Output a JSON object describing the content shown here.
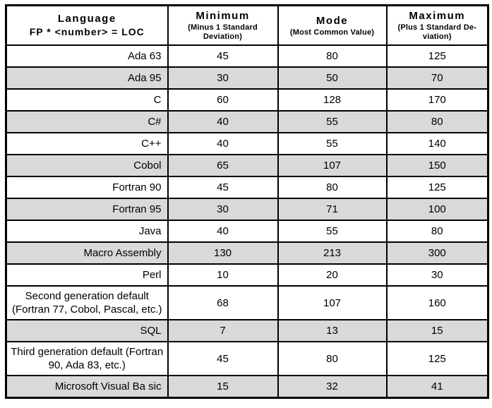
{
  "header": {
    "language": {
      "line1": "Language",
      "line2": "FP * <number> = LOC"
    },
    "minimum": {
      "title": "Minimum",
      "subtitle": "(Minus 1 Standard Deviation)"
    },
    "mode": {
      "title": "Mode",
      "subtitle": "(Most Common Value)"
    },
    "maximum": {
      "title": "Maximum",
      "subtitle": "(Plus 1 Standard De-viation)"
    }
  },
  "colors": {
    "shaded_row": "#d9d9d9",
    "border": "#000000"
  },
  "rows": [
    {
      "language": "Ada 63",
      "min": "45",
      "mode": "80",
      "max": "125",
      "shaded": false,
      "align": "right"
    },
    {
      "language": "Ada 95",
      "min": "30",
      "mode": "50",
      "max": "70",
      "shaded": true,
      "align": "right"
    },
    {
      "language": "C",
      "min": "60",
      "mode": "128",
      "max": "170",
      "shaded": false,
      "align": "right"
    },
    {
      "language": "C#",
      "min": "40",
      "mode": "55",
      "max": "80",
      "shaded": true,
      "align": "right"
    },
    {
      "language": "C++",
      "min": "40",
      "mode": "55",
      "max": "140",
      "shaded": false,
      "align": "right"
    },
    {
      "language": "Cobol",
      "min": "65",
      "mode": "107",
      "max": "150",
      "shaded": true,
      "align": "right"
    },
    {
      "language": "Fortran 90",
      "min": "45",
      "mode": "80",
      "max": "125",
      "shaded": false,
      "align": "right"
    },
    {
      "language": "Fortran 95",
      "min": "30",
      "mode": "71",
      "max": "100",
      "shaded": true,
      "align": "right"
    },
    {
      "language": "Java",
      "min": "40",
      "mode": "55",
      "max": "80",
      "shaded": false,
      "align": "right"
    },
    {
      "language": "Macro Assembly",
      "min": "130",
      "mode": "213",
      "max": "300",
      "shaded": true,
      "align": "right"
    },
    {
      "language": "Perl",
      "min": "10",
      "mode": "20",
      "max": "30",
      "shaded": false,
      "align": "right"
    },
    {
      "language": "Second generation default (Fortran 77, Cobol, Pascal, etc.)",
      "min": "68",
      "mode": "107",
      "max": "160",
      "shaded": false,
      "align": "center"
    },
    {
      "language": "SQL",
      "min": "7",
      "mode": "13",
      "max": "15",
      "shaded": true,
      "align": "right"
    },
    {
      "language": "Third generation default (Fortran 90, Ada 83, etc.)",
      "min": "45",
      "mode": "80",
      "max": "125",
      "shaded": false,
      "align": "center"
    },
    {
      "language": "Microsoft Visual Ba sic",
      "min": "15",
      "mode": "32",
      "max": "41",
      "shaded": true,
      "align": "right"
    }
  ]
}
